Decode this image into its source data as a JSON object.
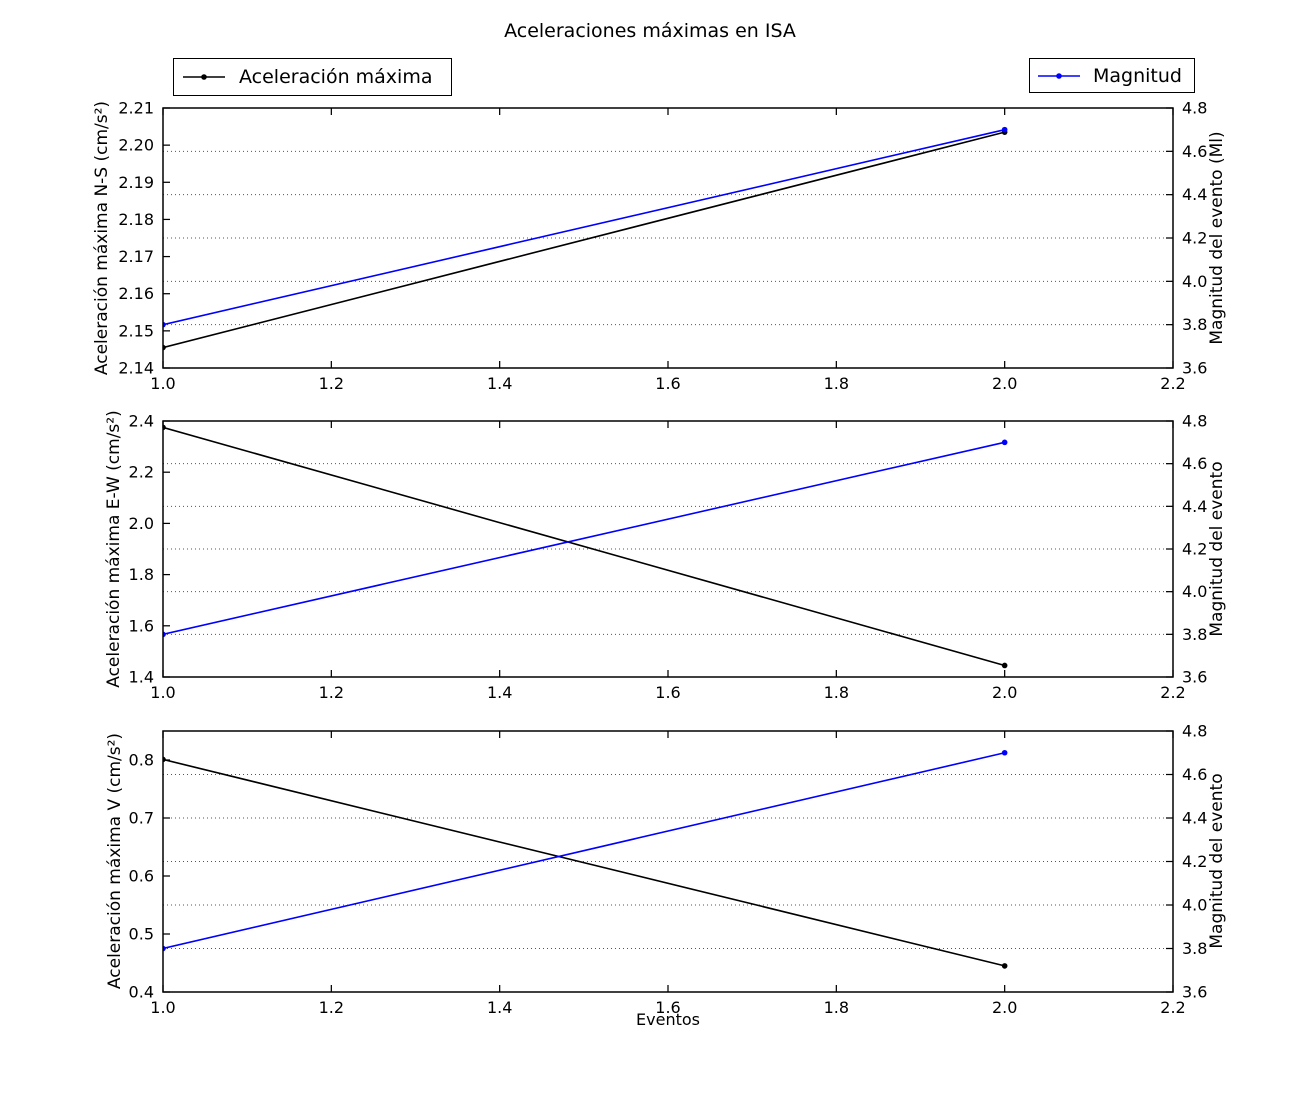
{
  "figure": {
    "title": "Aceleraciones máximas en ISA",
    "xlabel": "Eventos",
    "background_color": "#ffffff",
    "grid_style": "dotted horizontal lines at right-axis ticks",
    "legends": [
      {
        "label": "Aceleración máxima",
        "color": "#000000",
        "marker": "dot-on-line"
      },
      {
        "label": "Magnitud",
        "color": "#0000ff",
        "marker": "dot-on-line"
      }
    ]
  },
  "chart_data": [
    {
      "type": "line",
      "subplot": "N-S",
      "x": [
        1.0,
        2.0
      ],
      "xlim": [
        1.0,
        2.2
      ],
      "xticks": [
        "1.0",
        "1.2",
        "1.4",
        "1.6",
        "1.8",
        "2.0",
        "2.2"
      ],
      "left": {
        "label": "Aceleración máxima N-S (cm/s²)",
        "lim": [
          2.14,
          2.21
        ],
        "ticks": [
          "2.14",
          "2.15",
          "2.16",
          "2.17",
          "2.18",
          "2.19",
          "2.20",
          "2.21"
        ]
      },
      "right": {
        "label": "Magnitud del evento (Ml)",
        "lim": [
          3.6,
          4.8
        ],
        "ticks": [
          "3.6",
          "3.8",
          "4.0",
          "4.2",
          "4.4",
          "4.6",
          "4.8"
        ]
      },
      "series": [
        {
          "name": "Aceleración máxima",
          "axis": "left",
          "color": "#000000",
          "values": [
            2.1455,
            2.2035
          ]
        },
        {
          "name": "Magnitud",
          "axis": "right",
          "color": "#0000ff",
          "values": [
            3.8,
            4.7
          ]
        }
      ]
    },
    {
      "type": "line",
      "subplot": "E-W",
      "x": [
        1.0,
        2.0
      ],
      "xlim": [
        1.0,
        2.2
      ],
      "xticks": [
        "1.0",
        "1.2",
        "1.4",
        "1.6",
        "1.8",
        "2.0",
        "2.2"
      ],
      "left": {
        "label": "Aceleración máxima E-W (cm/s²)",
        "lim": [
          1.4,
          2.4
        ],
        "ticks": [
          "1.4",
          "1.6",
          "1.8",
          "2.0",
          "2.2",
          "2.4"
        ]
      },
      "right": {
        "label": "Magnitud del evento",
        "lim": [
          3.6,
          4.8
        ],
        "ticks": [
          "3.6",
          "3.8",
          "4.0",
          "4.2",
          "4.4",
          "4.6",
          "4.8"
        ]
      },
      "series": [
        {
          "name": "Aceleración máxima",
          "axis": "left",
          "color": "#000000",
          "values": [
            2.375,
            1.445
          ]
        },
        {
          "name": "Magnitud",
          "axis": "right",
          "color": "#0000ff",
          "values": [
            3.8,
            4.7
          ]
        }
      ]
    },
    {
      "type": "line",
      "subplot": "V",
      "x": [
        1.0,
        2.0
      ],
      "xlim": [
        1.0,
        2.2
      ],
      "xticks": [
        "1.0",
        "1.2",
        "1.4",
        "1.6",
        "1.8",
        "2.0",
        "2.2"
      ],
      "left": {
        "label": "Aceleración máxima V (cm/s²)",
        "lim": [
          0.4,
          0.85
        ],
        "ticks": [
          "0.4",
          "0.5",
          "0.6",
          "0.7",
          "0.8"
        ]
      },
      "right": {
        "label": "Magnitud del evento",
        "lim": [
          3.6,
          4.8
        ],
        "ticks": [
          "3.6",
          "3.8",
          "4.0",
          "4.2",
          "4.4",
          "4.6",
          "4.8"
        ]
      },
      "series": [
        {
          "name": "Aceleración máxima",
          "axis": "left",
          "color": "#000000",
          "values": [
            0.801,
            0.445
          ]
        },
        {
          "name": "Magnitud",
          "axis": "right",
          "color": "#0000ff",
          "values": [
            3.8,
            4.7
          ]
        }
      ]
    }
  ]
}
